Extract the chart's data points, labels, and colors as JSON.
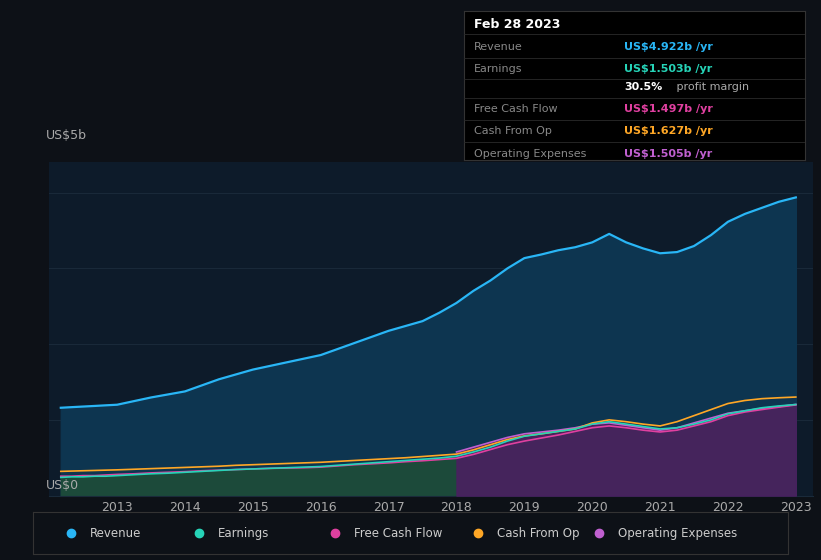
{
  "bg_color": "#0d1117",
  "plot_bg_color": "#0d1b2a",
  "ylabel_top": "US$5b",
  "ylabel_bottom": "US$0",
  "years": [
    2012.17,
    2012.33,
    2012.5,
    2012.67,
    2012.83,
    2013.0,
    2013.25,
    2013.5,
    2013.75,
    2014.0,
    2014.25,
    2014.5,
    2014.75,
    2015.0,
    2015.25,
    2015.5,
    2015.75,
    2016.0,
    2016.25,
    2016.5,
    2016.75,
    2017.0,
    2017.25,
    2017.5,
    2017.75,
    2018.0,
    2018.25,
    2018.5,
    2018.75,
    2019.0,
    2019.25,
    2019.5,
    2019.75,
    2020.0,
    2020.25,
    2020.5,
    2020.75,
    2021.0,
    2021.25,
    2021.5,
    2021.75,
    2022.0,
    2022.25,
    2022.5,
    2022.75,
    2023.0
  ],
  "revenue": [
    1.45,
    1.46,
    1.47,
    1.48,
    1.49,
    1.5,
    1.56,
    1.62,
    1.67,
    1.72,
    1.82,
    1.92,
    2.0,
    2.08,
    2.14,
    2.2,
    2.26,
    2.32,
    2.42,
    2.52,
    2.62,
    2.72,
    2.8,
    2.88,
    3.02,
    3.18,
    3.38,
    3.55,
    3.75,
    3.92,
    3.98,
    4.05,
    4.1,
    4.18,
    4.32,
    4.18,
    4.08,
    4.0,
    4.02,
    4.12,
    4.3,
    4.52,
    4.65,
    4.75,
    4.85,
    4.922
  ],
  "earnings": [
    0.3,
    0.31,
    0.31,
    0.32,
    0.32,
    0.33,
    0.345,
    0.36,
    0.37,
    0.385,
    0.4,
    0.415,
    0.43,
    0.44,
    0.45,
    0.46,
    0.47,
    0.48,
    0.5,
    0.52,
    0.54,
    0.56,
    0.58,
    0.6,
    0.62,
    0.65,
    0.72,
    0.8,
    0.9,
    0.98,
    1.02,
    1.06,
    1.1,
    1.18,
    1.22,
    1.18,
    1.14,
    1.1,
    1.12,
    1.18,
    1.25,
    1.35,
    1.4,
    1.45,
    1.48,
    1.503
  ],
  "free_cash_flow": [
    0.32,
    0.32,
    0.33,
    0.33,
    0.34,
    0.35,
    0.36,
    0.375,
    0.385,
    0.395,
    0.41,
    0.42,
    0.43,
    0.44,
    0.45,
    0.455,
    0.46,
    0.47,
    0.49,
    0.51,
    0.525,
    0.54,
    0.56,
    0.575,
    0.595,
    0.615,
    0.68,
    0.76,
    0.84,
    0.9,
    0.95,
    1.0,
    1.06,
    1.12,
    1.15,
    1.12,
    1.08,
    1.05,
    1.08,
    1.15,
    1.22,
    1.32,
    1.38,
    1.42,
    1.46,
    1.497
  ],
  "cash_from_op": [
    0.4,
    0.405,
    0.41,
    0.415,
    0.42,
    0.425,
    0.435,
    0.445,
    0.455,
    0.465,
    0.475,
    0.485,
    0.5,
    0.51,
    0.52,
    0.53,
    0.54,
    0.55,
    0.565,
    0.58,
    0.595,
    0.61,
    0.625,
    0.645,
    0.665,
    0.685,
    0.755,
    0.84,
    0.925,
    0.985,
    1.02,
    1.06,
    1.1,
    1.2,
    1.25,
    1.22,
    1.18,
    1.15,
    1.22,
    1.32,
    1.42,
    1.52,
    1.57,
    1.6,
    1.615,
    1.627
  ],
  "op_expenses": [
    0.0,
    0.0,
    0.0,
    0.0,
    0.0,
    0.0,
    0.0,
    0.0,
    0.0,
    0.0,
    0.0,
    0.0,
    0.0,
    0.0,
    0.0,
    0.0,
    0.0,
    0.0,
    0.0,
    0.0,
    0.0,
    0.0,
    0.0,
    0.0,
    0.0,
    0.72,
    0.8,
    0.88,
    0.96,
    1.02,
    1.05,
    1.08,
    1.12,
    1.18,
    1.2,
    1.16,
    1.12,
    1.08,
    1.12,
    1.2,
    1.28,
    1.36,
    1.4,
    1.44,
    1.47,
    1.505
  ],
  "revenue_color": "#29b6f6",
  "revenue_fill": "#0d3550",
  "earnings_color": "#26d4b8",
  "earnings_fill": "#1c4a3a",
  "free_cash_flow_color": "#e040a0",
  "free_cash_flow_fill": "#5c1f45",
  "cash_from_op_color": "#ffa726",
  "op_expenses_color": "#c060d0",
  "op_expenses_fill": "#4a2060",
  "xlim": [
    2012.0,
    2023.25
  ],
  "ylim": [
    0,
    5.5
  ],
  "xticks": [
    2013,
    2014,
    2015,
    2016,
    2017,
    2018,
    2019,
    2020,
    2021,
    2022,
    2023
  ],
  "grid_color": "#1a2a3a",
  "text_color": "#aaaaaa",
  "info_box": {
    "date": "Feb 28 2023",
    "revenue_label": "Revenue",
    "revenue_val": "US$4.922b /yr",
    "revenue_color": "#29b6f6",
    "earnings_label": "Earnings",
    "earnings_val": "US$1.503b /yr",
    "earnings_color": "#26d4b8",
    "margin_pct": "30.5%",
    "margin_text": " profit margin",
    "fcf_label": "Free Cash Flow",
    "fcf_val": "US$1.497b /yr",
    "fcf_color": "#e040a0",
    "cop_label": "Cash From Op",
    "cop_val": "US$1.627b /yr",
    "cop_color": "#ffa726",
    "opex_label": "Operating Expenses",
    "opex_val": "US$1.505b /yr",
    "opex_color": "#c060d0"
  },
  "legend_items": [
    {
      "label": "Revenue",
      "color": "#29b6f6"
    },
    {
      "label": "Earnings",
      "color": "#26d4b8"
    },
    {
      "label": "Free Cash Flow",
      "color": "#e040a0"
    },
    {
      "label": "Cash From Op",
      "color": "#ffa726"
    },
    {
      "label": "Operating Expenses",
      "color": "#c060d0"
    }
  ]
}
